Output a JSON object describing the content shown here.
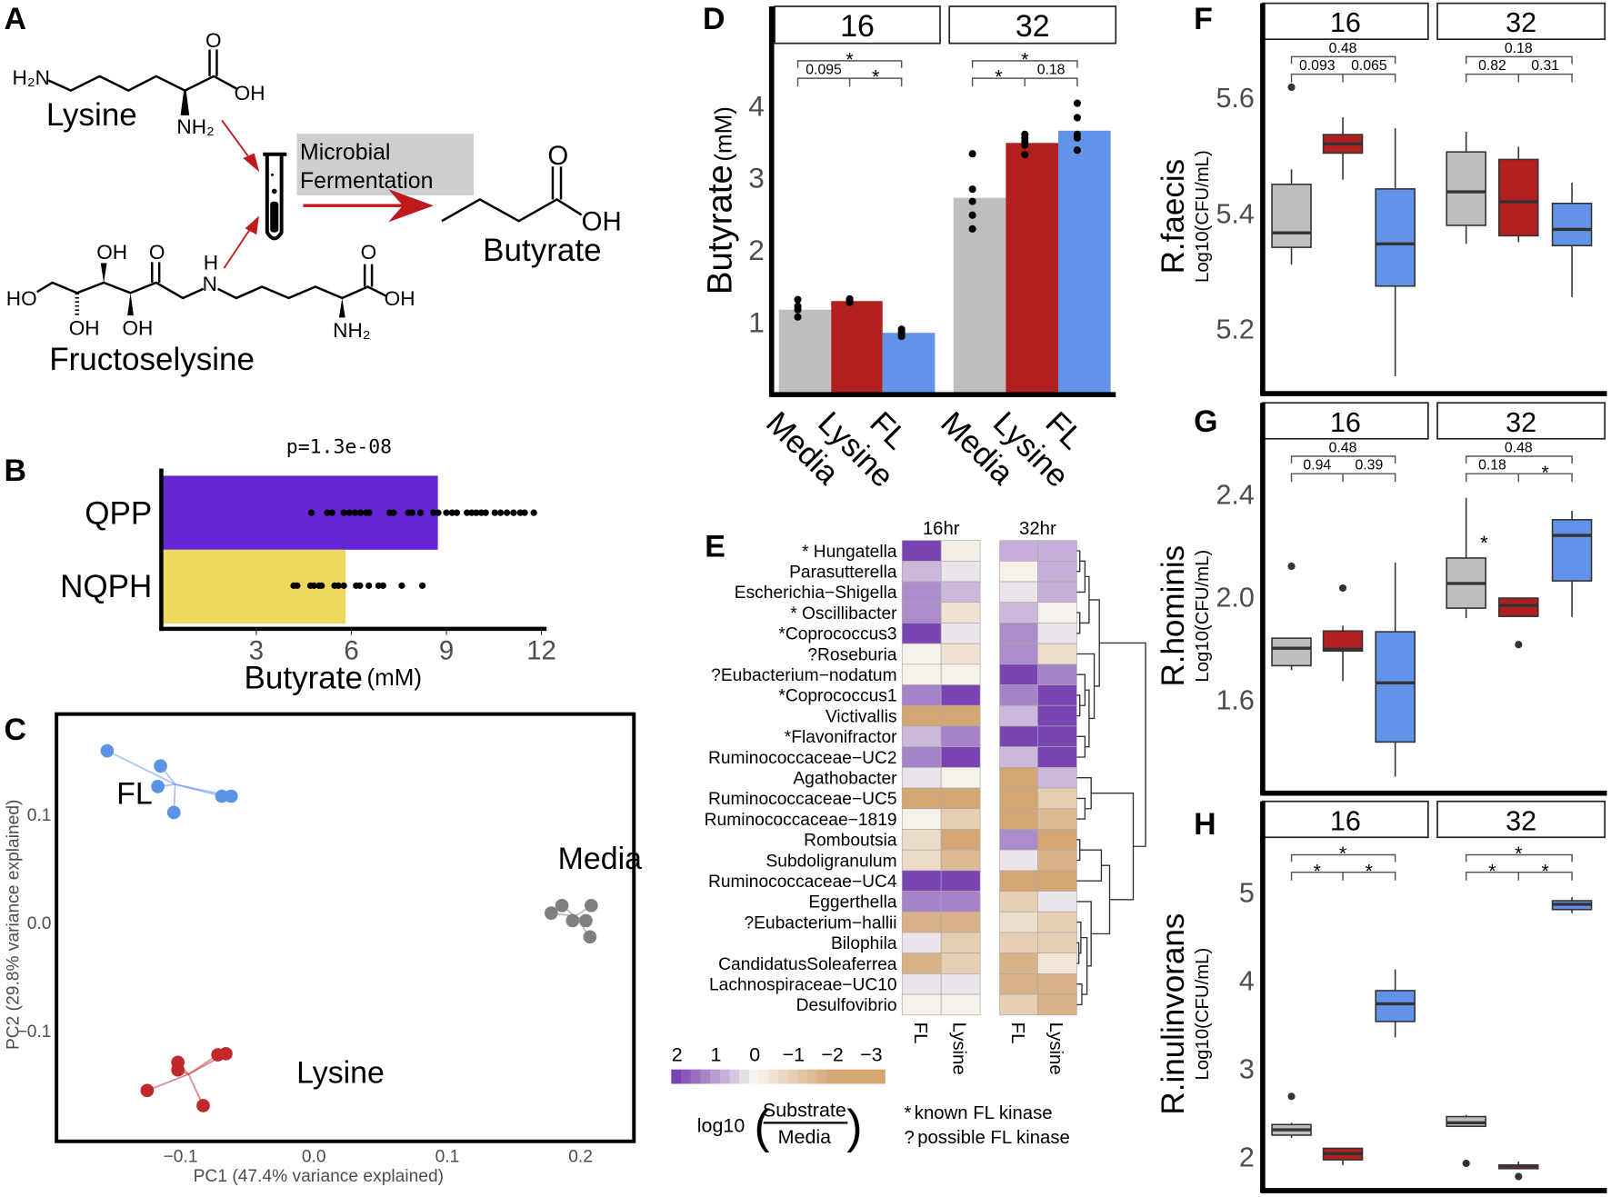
{
  "panel_letters": {
    "a": "A",
    "b": "B",
    "c": "C",
    "d": "D",
    "e": "E",
    "f": "F",
    "g": "G",
    "h": "H"
  },
  "panel_a": {
    "lysine": {
      "name": "Lysine",
      "h2n": "H₂N",
      "o": "O",
      "oh": "OH",
      "nh2": "NH₂"
    },
    "process": {
      "line1": "Microbial",
      "line2": "Fermentation"
    },
    "butyrate": {
      "name": "Butyrate",
      "o": "O",
      "oh": "OH"
    },
    "fructoselysine": {
      "name": "Fructoselysine",
      "ho": "HO",
      "oh_top": "OH",
      "o_keto": "O",
      "oh_bottom_1": "OH",
      "oh_bottom_2": "OH",
      "h": "H",
      "n": "N",
      "o": "O",
      "oh": "OH",
      "nh2": "NH₂"
    },
    "colors": {
      "arrow": "#c0191c",
      "process_box": "#cfcfd1"
    }
  },
  "chart_data": [
    {
      "panel": "B",
      "type": "bar",
      "orientation": "horizontal",
      "title": "p=1.3e-08",
      "categories": [
        "QPP",
        "NQPH"
      ],
      "values": [
        8.73,
        5.82
      ],
      "colors": [
        "#6527d6",
        "#eed95e"
      ],
      "points": {
        "QPP": [
          4.74,
          5.24,
          5.39,
          5.76,
          5.94,
          6.12,
          6.29,
          6.47,
          6.56,
          7.21,
          7.33,
          7.8,
          7.92,
          8.18,
          8.59,
          8.74,
          9.0,
          9.18,
          9.33,
          9.65,
          9.8,
          9.94,
          10.1,
          10.24,
          10.53,
          10.71,
          10.91,
          11.12,
          11.33,
          11.47,
          11.76
        ],
        "NQPH": [
          4.18,
          4.29,
          4.71,
          4.82,
          4.98,
          5.06,
          5.47,
          5.59,
          5.76,
          6.15,
          6.27,
          6.55,
          6.86,
          7.0,
          7.59,
          8.24
        ]
      },
      "xlabel": "Butyrate",
      "xlabel_unit": "(mM)",
      "xticks": [
        3,
        6,
        9,
        12
      ],
      "xtick_labels": [
        "3",
        "6",
        "9",
        "12"
      ],
      "xlim": [
        0,
        12.3
      ]
    },
    {
      "panel": "C",
      "type": "scatter",
      "xlabel": "PC1 (47.4% variance explained)",
      "ylabel": "PC2 (29.8% variance explained)",
      "xticks": [
        -0.1,
        0.0,
        0.1,
        0.2
      ],
      "xtick_labels": [
        "−0.1",
        "0.0",
        "0.1",
        "0.2"
      ],
      "yticks": [
        0.1,
        0.0,
        -0.1
      ],
      "ytick_labels": [
        "0.1",
        "0.0",
        "−0.1"
      ],
      "xlim": [
        -0.193,
        0.24
      ],
      "ylim": [
        -0.202,
        0.193
      ],
      "groups": [
        {
          "name": "FL",
          "color": "#5b93e6",
          "centroid": [
            -0.104,
            0.128
          ],
          "points": [
            [
              -0.155,
              0.159
            ],
            [
              -0.115,
              0.145
            ],
            [
              -0.117,
              0.126
            ],
            [
              -0.105,
              0.102
            ],
            [
              -0.069,
              0.117
            ],
            [
              -0.062,
              0.117
            ]
          ],
          "label_at": [
            -0.148,
            0.11
          ]
        },
        {
          "name": "Media",
          "color": "#7f7f7f",
          "centroid": [
            0.196,
            0.006
          ],
          "points": [
            [
              0.178,
              0.009
            ],
            [
              0.186,
              0.016
            ],
            [
              0.208,
              0.016
            ],
            [
              0.194,
              0.002
            ],
            [
              0.204,
              0.002
            ],
            [
              0.207,
              -0.013
            ]
          ],
          "label_at": [
            0.183,
            0.05
          ]
        },
        {
          "name": "Lysine",
          "color": "#c0282a",
          "centroid": [
            -0.094,
            -0.14
          ],
          "points": [
            [
              -0.125,
              -0.155
            ],
            [
              -0.102,
              -0.129
            ],
            [
              -0.102,
              -0.136
            ],
            [
              -0.072,
              -0.122
            ],
            [
              -0.066,
              -0.121
            ],
            [
              -0.083,
              -0.169
            ]
          ],
          "label_at": [
            -0.013,
            -0.148
          ]
        }
      ]
    },
    {
      "panel": "D",
      "type": "bar",
      "facets": [
        "16",
        "32"
      ],
      "categories": [
        "Media",
        "Lysine",
        "FL"
      ],
      "colors": [
        "#bebebe",
        "#b21f1f",
        "#6193e8"
      ],
      "values": {
        "16": [
          1.17,
          1.29,
          0.85
        ],
        "32": [
          2.72,
          3.48,
          3.65
        ]
      },
      "points": {
        "16": [
          [
            1.07,
            1.17,
            1.22,
            1.31
          ],
          [
            1.27,
            1.3,
            1.32
          ],
          [
            0.8,
            0.83,
            0.86,
            0.9
          ]
        ],
        "32": [
          [
            2.29,
            2.48,
            2.67,
            2.84,
            3.33
          ],
          [
            3.32,
            3.45,
            3.5,
            3.55,
            3.6
          ],
          [
            3.38,
            3.55,
            3.6,
            3.83,
            4.03
          ]
        ]
      },
      "comparisons": {
        "16": {
          "all": "*",
          "left": "0.095",
          "right": "*"
        },
        "32": {
          "all": "*",
          "left": "*",
          "right": "0.18"
        }
      },
      "ylabel": "Butyrate",
      "ylabel_unit": "(mM)",
      "yticks": [
        1,
        2,
        3,
        4
      ],
      "ytick_labels": [
        "1",
        "2",
        "3",
        "4"
      ],
      "ylim": [
        0,
        4.86
      ]
    },
    {
      "panel": "E",
      "type": "heatmap",
      "column_groups": [
        "16hr",
        "32hr"
      ],
      "columns": [
        "FL",
        "Lysine"
      ],
      "rows": [
        {
          "marker": "* ",
          "name": "Hungatella"
        },
        {
          "marker": "",
          "name": "Parasutterella"
        },
        {
          "marker": "",
          "name": "Escherichia−Shigella"
        },
        {
          "marker": "* ",
          "name": "Oscillibacter"
        },
        {
          "marker": "*",
          "name": "Coprococcus3"
        },
        {
          "marker": "?",
          "name": "Roseburia"
        },
        {
          "marker": "?",
          "name": "Eubacterium−nodatum"
        },
        {
          "marker": "*",
          "name": "Coprococcus1"
        },
        {
          "marker": "",
          "name": "Victivallis"
        },
        {
          "marker": "*",
          "name": "Flavonifractor"
        },
        {
          "marker": "",
          "name": "Ruminococcaceae−UC2"
        },
        {
          "marker": "",
          "name": "Agathobacter"
        },
        {
          "marker": "",
          "name": "Ruminococcaceae−UC5"
        },
        {
          "marker": "",
          "name": "Ruminococcaceae−1819"
        },
        {
          "marker": "",
          "name": "Romboutsia"
        },
        {
          "marker": "",
          "name": "Subdoligranulum"
        },
        {
          "marker": "",
          "name": "Ruminococcaceae−UC4"
        },
        {
          "marker": "",
          "name": "Eggerthella"
        },
        {
          "marker": "?",
          "name": "Eubacterium−hallii"
        },
        {
          "marker": "",
          "name": "Bilophila"
        },
        {
          "marker": "",
          "name": "CandidatusSoleaferrea"
        },
        {
          "marker": "",
          "name": "Lachnospiraceae−UC10"
        },
        {
          "marker": "",
          "name": "Desulfovibrio"
        }
      ],
      "values": [
        [
          2,
          -0.2,
          0.8,
          0.8
        ],
        [
          0.7,
          0.2,
          -0.1,
          0.8
        ],
        [
          1.2,
          0.7,
          0.2,
          0.8
        ],
        [
          1.2,
          -0.5,
          0.7,
          -0.1
        ],
        [
          2,
          0.2,
          1.2,
          0.2
        ],
        [
          -0.1,
          -0.5,
          1.2,
          -0.6
        ],
        [
          -0.1,
          -0.1,
          2,
          1.3
        ],
        [
          1.3,
          2,
          1.3,
          2
        ],
        [
          -2,
          -2,
          0.7,
          2
        ],
        [
          0.7,
          1.3,
          2,
          2
        ],
        [
          1.3,
          2,
          0.7,
          2
        ],
        [
          0.2,
          -0.1,
          -2,
          0.7
        ],
        [
          -2,
          -2,
          -2,
          -1
        ],
        [
          -0.1,
          -1,
          -2,
          -1.5
        ],
        [
          -0.7,
          -2,
          1.2,
          -2
        ],
        [
          -0.7,
          -1.5,
          0.2,
          -1.7
        ],
        [
          2,
          2,
          -2,
          -2
        ],
        [
          1.3,
          1.3,
          -1,
          0.2
        ],
        [
          -1.7,
          -1.7,
          -0.6,
          -1
        ],
        [
          0.2,
          -1,
          -1,
          -1
        ],
        [
          -1.7,
          -1,
          -1.7,
          -0.4
        ],
        [
          0.2,
          0.2,
          -1.7,
          -1.7
        ],
        [
          -0.1,
          -0.1,
          -1,
          -1.7
        ]
      ],
      "colorbar": {
        "ticks": [
          2,
          1,
          0,
          -1,
          -2,
          -3
        ],
        "tick_labels": [
          "2",
          "1",
          "0",
          "−1",
          "−2",
          "−3"
        ],
        "label_prefix": "log10",
        "numerator": "Substrate",
        "denominator": "Media",
        "high_color": "#7a45b3",
        "mid_color": "#f8f6f0",
        "low_color": "#d3a674"
      },
      "legend_notes": [
        {
          "symbol": "*",
          "text": "known FL kinase"
        },
        {
          "symbol": "?",
          "text": "possible FL kinase"
        }
      ]
    },
    {
      "panel": "F",
      "type": "box",
      "ylabel": "R.faecis",
      "ylabel_sub": "Log10(CFU/mL)",
      "facets": [
        "16",
        "32"
      ],
      "groups": [
        "Media",
        "Lysine",
        "FL"
      ],
      "colors": [
        "#bebebe",
        "#b21f1f",
        "#6193e8"
      ],
      "yticks": [
        5.2,
        5.4,
        5.6
      ],
      "ytick_labels": [
        "5.2",
        "5.4",
        "5.6"
      ],
      "ylim": [
        5.087,
        5.7
      ],
      "boxes": {
        "16": [
          {
            "min": 5.31,
            "q1": 5.34,
            "median": 5.365,
            "q3": 5.449,
            "max": 5.475,
            "outliers": [
              5.617
            ]
          },
          {
            "min": 5.457,
            "q1": 5.503,
            "median": 5.519,
            "q3": 5.535,
            "max": 5.565,
            "outliers": []
          },
          {
            "min": 5.117,
            "q1": 5.273,
            "median": 5.346,
            "q3": 5.441,
            "max": 5.546,
            "outliers": []
          }
        ],
        "32": [
          {
            "min": 5.346,
            "q1": 5.378,
            "median": 5.436,
            "q3": 5.505,
            "max": 5.54,
            "outliers": []
          },
          {
            "min": 5.349,
            "q1": 5.36,
            "median": 5.419,
            "q3": 5.492,
            "max": 5.514,
            "outliers": []
          },
          {
            "min": 5.254,
            "q1": 5.343,
            "median": 5.371,
            "q3": 5.416,
            "max": 5.452,
            "outliers": []
          }
        ]
      },
      "comparisons": {
        "16": {
          "all": "0.48",
          "left": "0.093",
          "right": "0.065"
        },
        "32": {
          "all": "0.18",
          "left": "0.82",
          "right": "0.31"
        }
      },
      "extra_marks": []
    },
    {
      "panel": "G",
      "type": "box",
      "ylabel": "R.hominis",
      "ylabel_sub": "Log10(CFU/mL)",
      "facets": [
        "16",
        "32"
      ],
      "groups": [
        "Media",
        "Lysine",
        "FL"
      ],
      "colors": [
        "#bebebe",
        "#b21f1f",
        "#6193e8"
      ],
      "yticks": [
        1.6,
        2.0,
        2.4
      ],
      "ytick_labels": [
        "1.6",
        "2.0",
        "2.4"
      ],
      "ylim": [
        1.234,
        2.613
      ],
      "boxes": {
        "16": [
          {
            "min": 1.713,
            "q1": 1.73,
            "median": 1.798,
            "q3": 1.837,
            "max": 1.837,
            "outliers": [
              2.117
            ]
          },
          {
            "min": 1.67,
            "q1": 1.787,
            "median": 1.794,
            "q3": 1.865,
            "max": 1.886,
            "outliers": [
              2.032
            ]
          },
          {
            "min": 1.298,
            "q1": 1.433,
            "median": 1.663,
            "q3": 1.862,
            "max": 2.131,
            "outliers": []
          }
        ],
        "32": [
          {
            "min": 1.915,
            "q1": 1.954,
            "median": 2.05,
            "q3": 2.149,
            "max": 2.383,
            "outliers": []
          },
          {
            "min": 1.922,
            "q1": 1.922,
            "median": 1.965,
            "q3": 1.993,
            "max": 1.993,
            "outliers": [
              1.812
            ]
          },
          {
            "min": 1.92,
            "q1": 2.06,
            "median": 2.237,
            "q3": 2.298,
            "max": 2.333,
            "outliers": []
          }
        ]
      },
      "comparisons": {
        "16": {
          "all": "0.48",
          "left": "0.94",
          "right": "0.39"
        },
        "32": {
          "all": "0.48",
          "left": "0.18",
          "right": "*"
        }
      },
      "extra_marks": [
        {
          "facet": "32",
          "between": [
            0,
            1
          ],
          "y": 2.216,
          "text": "*"
        }
      ]
    },
    {
      "panel": "H",
      "type": "box",
      "ylabel": "R.inulinvorans",
      "ylabel_sub": "Log10(CFU/mL)",
      "facets": [
        "16",
        "32"
      ],
      "groups": [
        "Media",
        "Lysine",
        "FL"
      ],
      "colors": [
        "#bebebe",
        "#b21f1f",
        "#6193e8"
      ],
      "yticks": [
        2,
        3,
        4,
        5
      ],
      "ytick_labels": [
        "2",
        "3",
        "4",
        "5"
      ],
      "ylim": [
        1.61,
        5.62
      ],
      "boxes": {
        "16": [
          {
            "min": 2.21,
            "q1": 2.24,
            "median": 2.3,
            "q3": 2.36,
            "max": 2.38,
            "outliers": [
              2.68
            ]
          },
          {
            "min": 1.9,
            "q1": 1.96,
            "median": 2.03,
            "q3": 2.09,
            "max": 2.09,
            "outliers": []
          },
          {
            "min": 3.35,
            "q1": 3.53,
            "median": 3.73,
            "q3": 3.88,
            "max": 4.12,
            "outliers": []
          }
        ],
        "32": [
          {
            "min": 2.34,
            "q1": 2.34,
            "median": 2.38,
            "q3": 2.45,
            "max": 2.47,
            "outliers": [
              1.92
            ]
          },
          {
            "min": 1.86,
            "q1": 1.86,
            "median": 1.89,
            "q3": 1.9,
            "max": 1.94,
            "outliers": [
              1.77
            ]
          },
          {
            "min": 4.76,
            "q1": 4.8,
            "median": 4.86,
            "q3": 4.9,
            "max": 4.94,
            "outliers": []
          }
        ]
      },
      "comparisons": {
        "16": {
          "all": "*",
          "left": "*",
          "right": "*"
        },
        "32": {
          "all": "*",
          "left": "*",
          "right": "*"
        }
      },
      "extra_marks": []
    }
  ]
}
